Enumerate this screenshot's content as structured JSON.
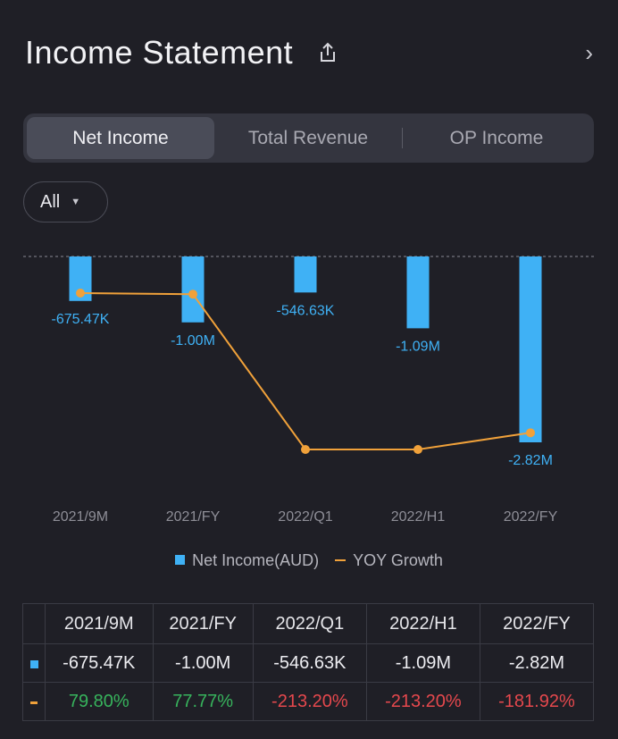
{
  "header": {
    "title": "Income Statement"
  },
  "tabs": [
    {
      "label": "Net Income",
      "active": true
    },
    {
      "label": "Total Revenue",
      "active": false
    },
    {
      "label": "OP Income",
      "active": false
    }
  ],
  "filter": {
    "label": "All"
  },
  "colors": {
    "bar": "#3fb1f5",
    "line": "#f0a13a",
    "positive": "#37b35c",
    "negative": "#e5484d"
  },
  "chart_data": {
    "type": "bar",
    "categories": [
      "2021/9M",
      "2021/FY",
      "2022/Q1",
      "2022/H1",
      "2022/FY"
    ],
    "series": [
      {
        "name": "Net Income(AUD)",
        "kind": "bar",
        "values": [
          -675470,
          -1000000,
          -546630,
          -1090000,
          -2820000
        ],
        "labels": [
          "-675.47K",
          "-1.00M",
          "-546.63K",
          "-1.09M",
          "-2.82M"
        ]
      },
      {
        "name": "YOY Growth",
        "kind": "line",
        "values": [
          79.8,
          77.77,
          -213.2,
          -213.2,
          -181.92
        ]
      }
    ],
    "ylim": [
      -2820000,
      0
    ],
    "legend_position": "bottom"
  },
  "legend": {
    "bar_label": "Net Income(AUD)",
    "line_label": "YOY Growth"
  },
  "table": {
    "headers": [
      "2021/9M",
      "2021/FY",
      "2022/Q1",
      "2022/H1",
      "2022/FY"
    ],
    "net_income": [
      "-675.47K",
      "-1.00M",
      "-546.63K",
      "-1.09M",
      "-2.82M"
    ],
    "yoy": [
      "79.80%",
      "77.77%",
      "-213.20%",
      "-213.20%",
      "-181.92%"
    ]
  }
}
